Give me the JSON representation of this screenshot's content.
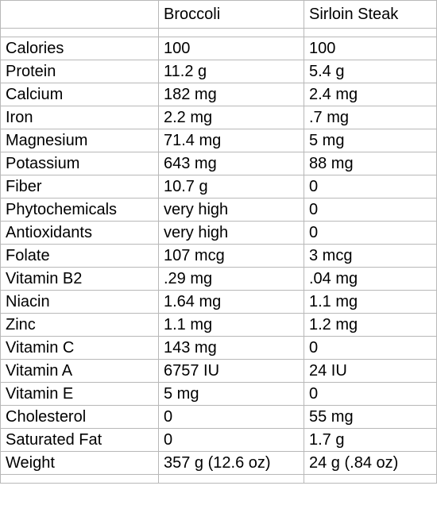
{
  "table": {
    "headers": [
      "",
      "Broccoli",
      "Sirloin Steak"
    ],
    "rows": [
      [
        "Calories",
        "100",
        "100"
      ],
      [
        "Protein",
        "11.2 g",
        "5.4 g"
      ],
      [
        "Calcium",
        "182 mg",
        "2.4 mg"
      ],
      [
        "Iron",
        "2.2 mg",
        ".7 mg"
      ],
      [
        "Magnesium",
        "71.4 mg",
        "5 mg"
      ],
      [
        "Potassium",
        "643 mg",
        "88 mg"
      ],
      [
        "Fiber",
        "10.7 g",
        "0"
      ],
      [
        "Phytochemicals",
        "very high",
        "0"
      ],
      [
        "Antioxidants",
        "very high",
        "0"
      ],
      [
        "Folate",
        "107 mcg",
        "3 mcg"
      ],
      [
        "Vitamin B2",
        ".29 mg",
        ".04 mg"
      ],
      [
        "Niacin",
        "1.64 mg",
        "1.1 mg"
      ],
      [
        "Zinc",
        "1.1 mg",
        "1.2 mg"
      ],
      [
        "Vitamin C",
        "143 mg",
        "0"
      ],
      [
        "Vitamin A",
        "6757 IU",
        "24 IU"
      ],
      [
        "Vitamin E",
        "5 mg",
        "0"
      ],
      [
        "Cholesterol",
        "0",
        "55 mg"
      ],
      [
        "Saturated Fat",
        "0",
        "1.7 g"
      ],
      [
        "Weight",
        "357 g (12.6 oz)",
        "24 g (.84 oz)"
      ]
    ]
  }
}
